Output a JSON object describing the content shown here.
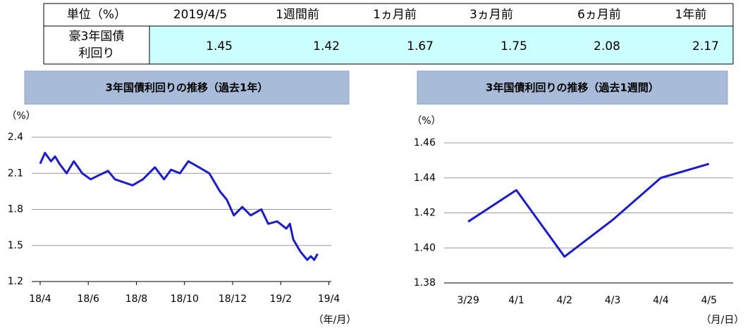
{
  "table": {
    "header": [
      "単位（%）",
      "2019/4/5",
      "1週間前",
      "1ヵ月前",
      "3ヵ月前",
      "6ヵ月前",
      "1年前"
    ],
    "row": {
      "label": [
        "豪3年国債",
        "利回り"
      ],
      "values": [
        1.45,
        1.42,
        1.67,
        1.75,
        2.08,
        2.17
      ]
    }
  },
  "chart_data": [
    {
      "type": "line",
      "title": "3年国債利回りの推移（過去1年）",
      "ylabel": "（%）",
      "xlabel": "（年/月）",
      "x": [
        0,
        0.2,
        0.45,
        0.62,
        0.8,
        1.1,
        1.4,
        1.75,
        1.75,
        2.1,
        2.4,
        2.82,
        3.11,
        3.4,
        3.84,
        4.27,
        4.77,
        5.15,
        5.44,
        5.81,
        6.16,
        6.6,
        7.03,
        7.47,
        7.76,
        8.05,
        8.4,
        8.75,
        9.19,
        9.48,
        9.85,
        10.23,
        10.38,
        10.52,
        10.81,
        11.1,
        11.25,
        11.39,
        11.53
      ],
      "values": [
        2.18,
        2.27,
        2.2,
        2.24,
        2.18,
        2.1,
        2.2,
        2.1,
        2.1,
        2.05,
        2.08,
        2.12,
        2.05,
        2.03,
        2.0,
        2.05,
        2.15,
        2.05,
        2.13,
        2.1,
        2.2,
        2.15,
        2.1,
        1.95,
        1.88,
        1.75,
        1.82,
        1.75,
        1.8,
        1.68,
        1.7,
        1.64,
        1.68,
        1.55,
        1.45,
        1.38,
        1.41,
        1.38,
        1.43
      ],
      "color": "#1c1cc8",
      "xlim": [
        -0.35,
        12.1
      ],
      "xticks": [
        {
          "value": 0,
          "label": "18/4"
        },
        {
          "value": 2,
          "label": "18/6"
        },
        {
          "value": 4,
          "label": "18/8"
        },
        {
          "value": 6,
          "label": "18/10"
        },
        {
          "value": 8,
          "label": "18/12"
        },
        {
          "value": 10,
          "label": "19/2"
        },
        {
          "value": 12,
          "label": "19/4"
        }
      ],
      "ylim": [
        1.2,
        2.4
      ],
      "yticks": [
        1.2,
        1.5,
        1.8,
        2.1,
        2.4
      ],
      "grid": true
    },
    {
      "type": "line",
      "title": "3年国債利回りの推移（過去1週間）",
      "ylabel": "（%）",
      "xlabel": "（月/日）",
      "categories": [
        "3/29",
        "4/1",
        "4/2",
        "4/3",
        "4/4",
        "4/5"
      ],
      "values": [
        1.415,
        1.433,
        1.395,
        1.416,
        1.44,
        1.448
      ],
      "color": "#1c1cc8",
      "ylim": [
        1.38,
        1.46
      ],
      "yticks": [
        1.38,
        {
          "value": 1.4,
          "label": "1.40"
        },
        1.42,
        1.44,
        1.46
      ],
      "grid": true
    }
  ]
}
